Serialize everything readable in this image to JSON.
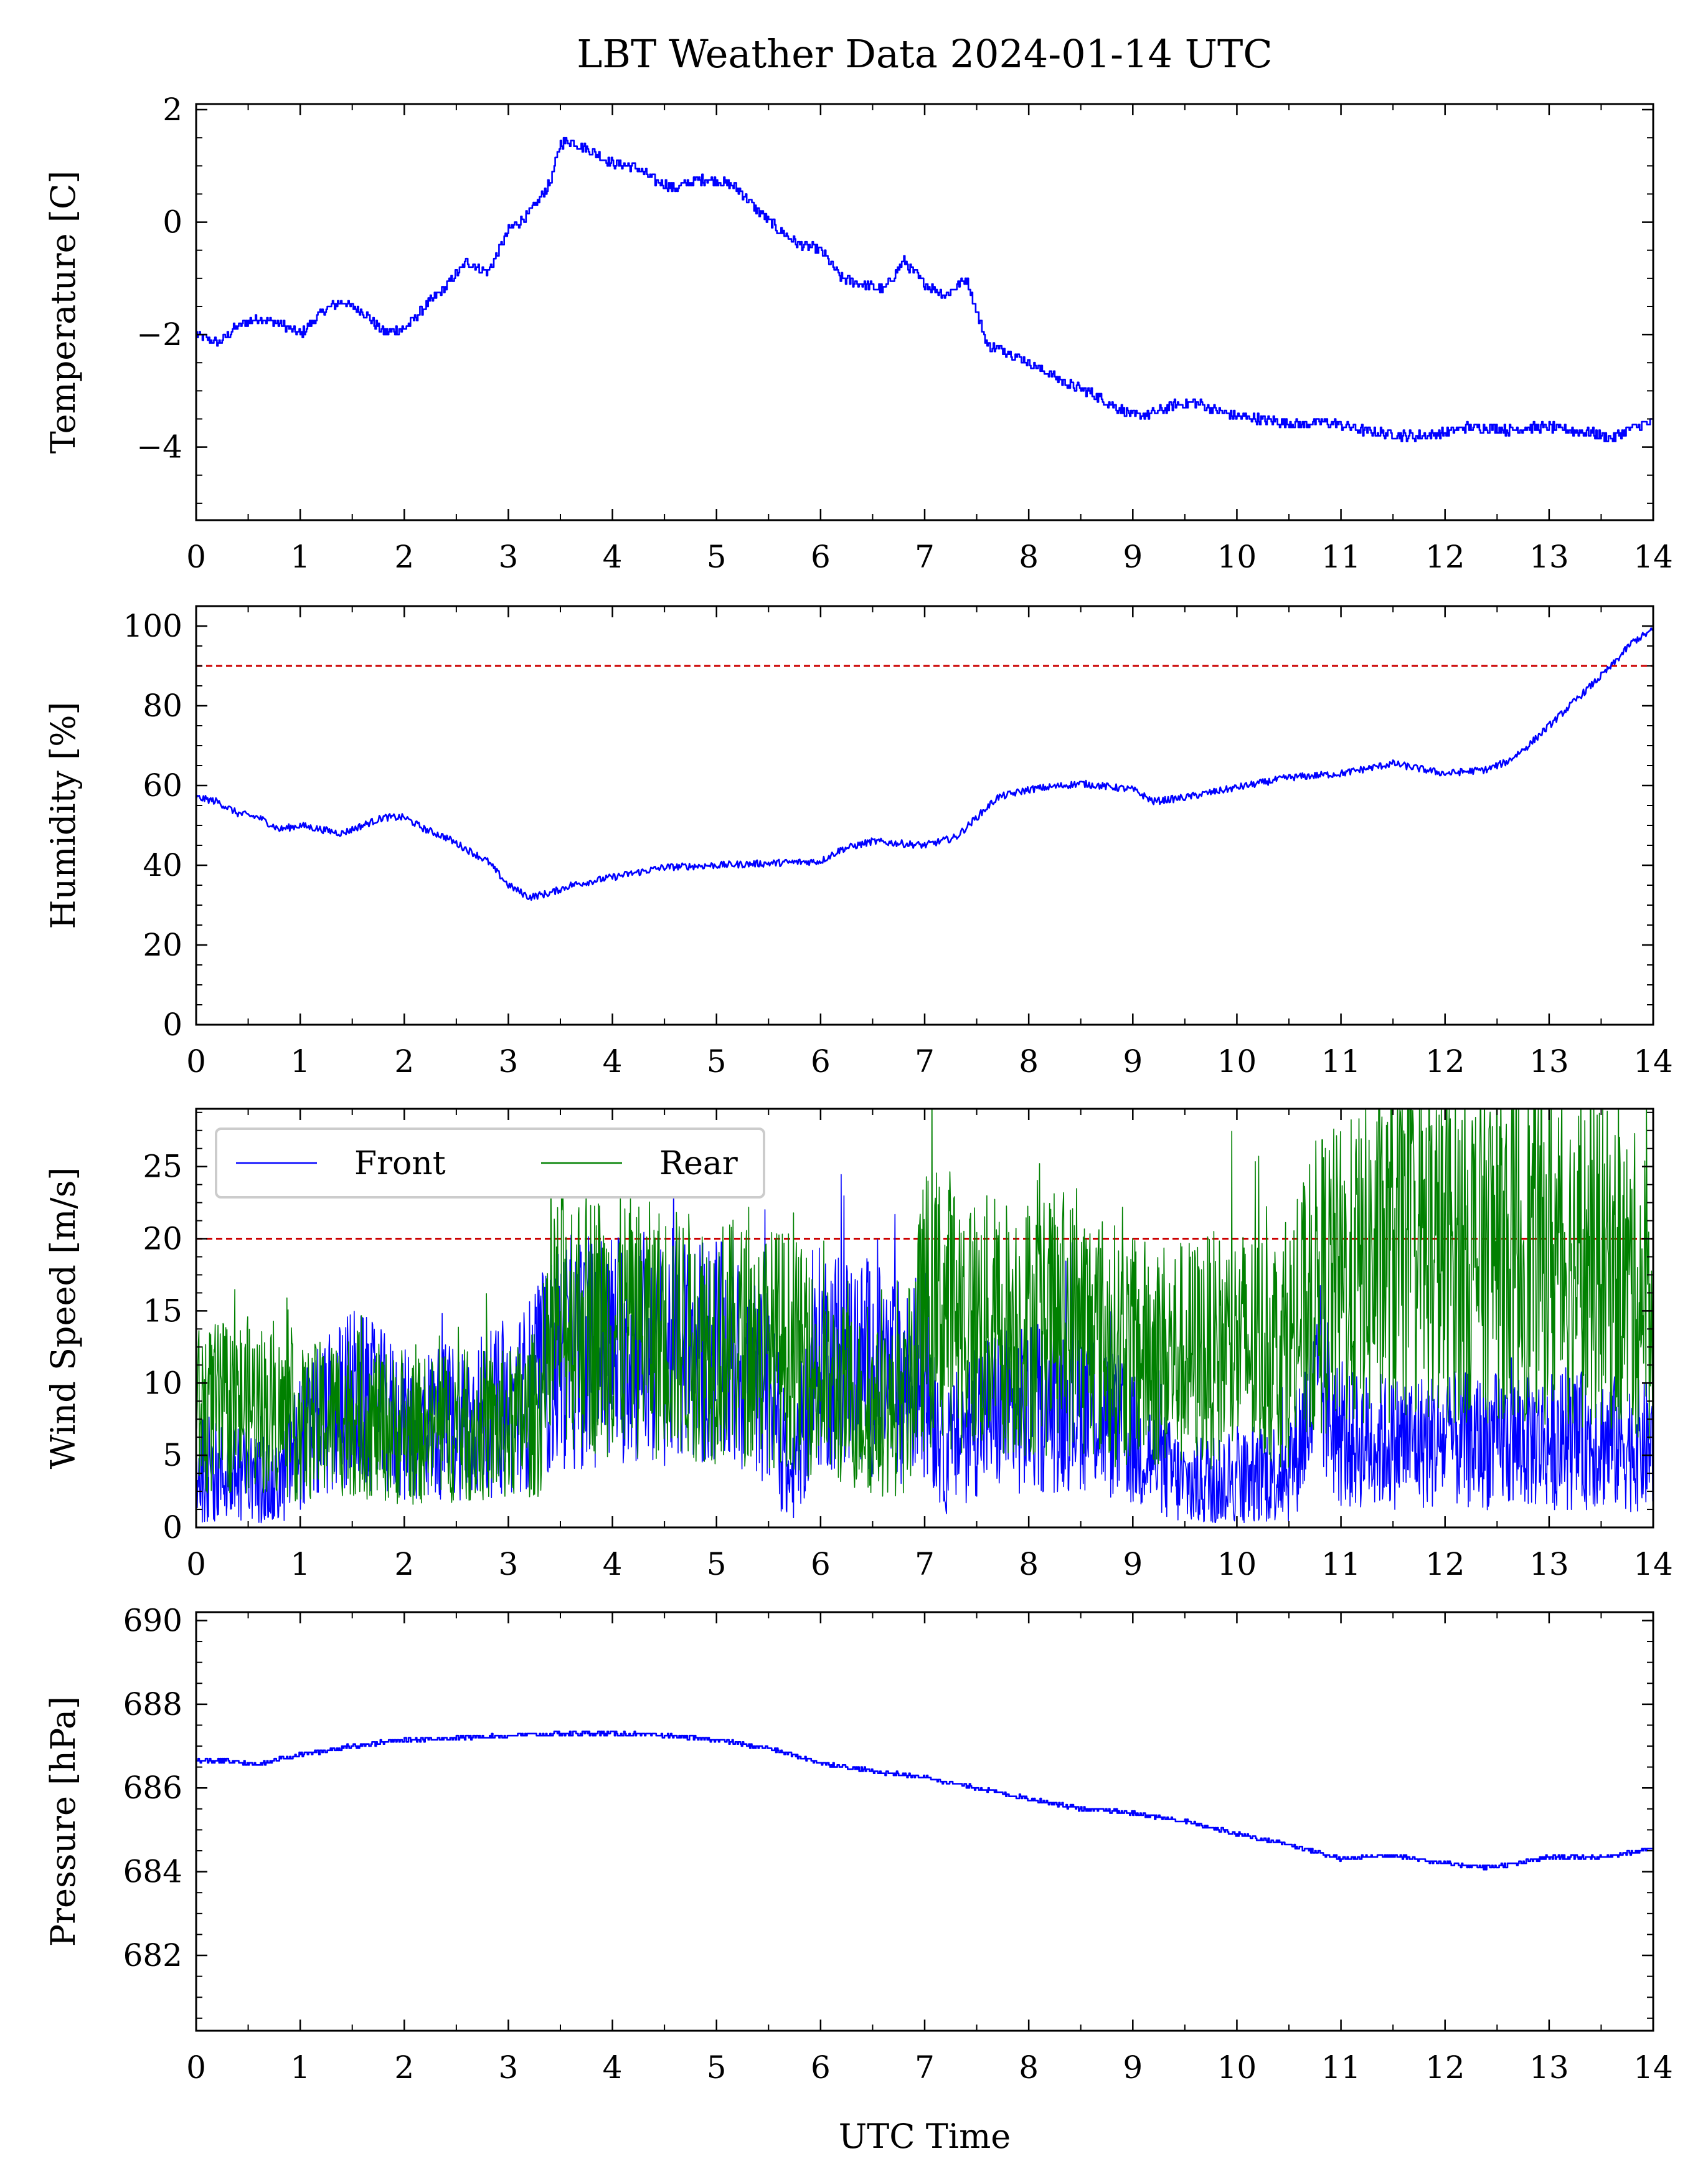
{
  "figure": {
    "title": "LBT Weather Data 2024-01-14 UTC",
    "xlabel": "UTC Time"
  },
  "colors": {
    "primary_series": "#0000ff",
    "secondary_series": "#008000",
    "threshold": "#cc0000",
    "axes": "#000000"
  },
  "chart_data": [
    {
      "type": "line",
      "id": "temperature",
      "ylabel": "Temperature [C]",
      "xlim": [
        0,
        14
      ],
      "ylim": [
        -5.3,
        2.1
      ],
      "xticks": [
        0,
        1,
        2,
        3,
        4,
        5,
        6,
        7,
        8,
        9,
        10,
        11,
        12,
        13,
        14
      ],
      "yticks": [
        -4,
        -2,
        0,
        2
      ],
      "ytick_labels": [
        "−4",
        "−2",
        "0",
        "2"
      ],
      "series": [
        {
          "color": "#0000ff",
          "x": [
            0,
            0.2,
            0.4,
            0.6,
            0.8,
            1.0,
            1.2,
            1.4,
            1.6,
            1.8,
            2.0,
            2.2,
            2.4,
            2.6,
            2.8,
            3.0,
            3.2,
            3.4,
            3.5,
            3.6,
            3.8,
            4.0,
            4.2,
            4.4,
            4.6,
            4.8,
            5.0,
            5.2,
            5.4,
            5.6,
            5.8,
            6.0,
            6.2,
            6.4,
            6.6,
            6.8,
            7.0,
            7.2,
            7.4,
            7.6,
            7.8,
            8.0,
            8.2,
            8.4,
            8.6,
            8.8,
            9.0,
            9.2,
            9.4,
            9.6,
            9.8,
            10.0,
            10.2,
            10.4,
            10.6,
            10.8,
            11.0,
            11.2,
            11.4,
            11.6,
            11.8,
            12.0,
            12.2,
            12.4,
            12.6,
            12.8,
            13.0,
            13.2,
            13.4,
            13.6,
            13.8,
            14.0
          ],
          "y": [
            -2.0,
            -2.15,
            -1.85,
            -1.7,
            -1.8,
            -2.0,
            -1.6,
            -1.4,
            -1.6,
            -1.95,
            -1.9,
            -1.5,
            -1.15,
            -0.7,
            -0.9,
            -0.15,
            0.15,
            0.7,
            1.4,
            1.45,
            1.25,
            1.05,
            1.0,
            0.75,
            0.6,
            0.75,
            0.75,
            0.6,
            0.2,
            -0.15,
            -0.4,
            -0.5,
            -1.0,
            -1.1,
            -1.2,
            -0.7,
            -1.1,
            -1.3,
            -1.0,
            -2.2,
            -2.3,
            -2.5,
            -2.7,
            -2.9,
            -3.05,
            -3.25,
            -3.45,
            -3.4,
            -3.25,
            -3.2,
            -3.35,
            -3.45,
            -3.5,
            -3.55,
            -3.6,
            -3.55,
            -3.6,
            -3.7,
            -3.75,
            -3.8,
            -3.8,
            -3.75,
            -3.65,
            -3.65,
            -3.7,
            -3.65,
            -3.65,
            -3.7,
            -3.75,
            -3.85,
            -3.65,
            -3.55
          ]
        }
      ]
    },
    {
      "type": "line",
      "id": "humidity",
      "ylabel": "Humidity [%]",
      "xlim": [
        0,
        14
      ],
      "ylim": [
        0,
        105
      ],
      "xticks": [
        0,
        1,
        2,
        3,
        4,
        5,
        6,
        7,
        8,
        9,
        10,
        11,
        12,
        13,
        14
      ],
      "yticks": [
        0,
        20,
        40,
        60,
        80,
        100
      ],
      "threshold": 90,
      "series": [
        {
          "color": "#0000ff",
          "x": [
            0,
            0.2,
            0.4,
            0.6,
            0.8,
            1.0,
            1.2,
            1.4,
            1.6,
            1.8,
            2.0,
            2.2,
            2.4,
            2.6,
            2.8,
            3.0,
            3.2,
            3.4,
            3.6,
            3.8,
            4.0,
            4.5,
            5.0,
            5.5,
            6.0,
            6.2,
            6.5,
            7.0,
            7.3,
            7.5,
            7.7,
            8.0,
            8.5,
            9.0,
            9.2,
            9.5,
            10.0,
            10.5,
            11.0,
            11.5,
            12.0,
            12.4,
            12.6,
            12.8,
            13.0,
            13.2,
            13.4,
            13.6,
            13.8,
            14.0
          ],
          "y": [
            57,
            56,
            53,
            52,
            49,
            50,
            49,
            48,
            50,
            52,
            52,
            49,
            47,
            44,
            41,
            35,
            32,
            33,
            35,
            36,
            37,
            39.5,
            40,
            40.5,
            41,
            44,
            46,
            45,
            47,
            52,
            57,
            59,
            60.5,
            59,
            56,
            57,
            59.5,
            62,
            63,
            65.5,
            63,
            64,
            66,
            70,
            75,
            80,
            85,
            90,
            96,
            99
          ]
        }
      ]
    },
    {
      "type": "line",
      "id": "wind_speed",
      "ylabel": "Wind Speed [m/s]",
      "xlim": [
        0,
        14
      ],
      "ylim": [
        0,
        29
      ],
      "xticks": [
        0,
        1,
        2,
        3,
        4,
        5,
        6,
        7,
        8,
        9,
        10,
        11,
        12,
        13,
        14
      ],
      "yticks": [
        0,
        5,
        10,
        15,
        20,
        25
      ],
      "threshold": 20,
      "legend_position": "upper-left",
      "series": [
        {
          "name": "Front",
          "color": "#0000ff",
          "x": [
            0,
            0.5,
            0.75,
            1.0,
            1.5,
            2.0,
            2.5,
            3.0,
            3.3,
            3.5,
            4.0,
            4.5,
            5.0,
            5.5,
            5.7,
            6.0,
            6.5,
            6.8,
            7.0,
            7.2,
            7.5,
            8.0,
            8.5,
            9.0,
            9.5,
            10.0,
            10.5,
            10.8,
            11.0,
            11.5,
            12.0,
            12.5,
            13.0,
            13.5,
            14.0
          ],
          "y": [
            4,
            3.5,
            2.5,
            6,
            9,
            7,
            7.5,
            8,
            10,
            12,
            12.5,
            12.5,
            12,
            10,
            3,
            12,
            11,
            10,
            11,
            5,
            8,
            8,
            9,
            6,
            3,
            3.5,
            4,
            10,
            6,
            6,
            6,
            6,
            6,
            6,
            5.5
          ]
        },
        {
          "name": "Rear",
          "color": "#008000",
          "x": [
            0,
            0.5,
            0.75,
            1.0,
            1.5,
            2.0,
            2.5,
            3.0,
            3.3,
            3.5,
            4.0,
            4.5,
            5.0,
            5.5,
            5.7,
            6.0,
            6.5,
            6.8,
            7.0,
            7.2,
            7.5,
            8.0,
            8.5,
            9.0,
            9.5,
            10.0,
            10.5,
            10.8,
            11.0,
            11.5,
            12.0,
            12.5,
            13.0,
            13.5,
            14.0
          ],
          "y": [
            8,
            8.5,
            8,
            7,
            8,
            6.5,
            7,
            7,
            8,
            15,
            14,
            13.5,
            13,
            12.5,
            12.5,
            10,
            8,
            8,
            15,
            15.5,
            14,
            14,
            14,
            12,
            12,
            12.5,
            12.5,
            17,
            17,
            19,
            19,
            19.5,
            19,
            18,
            16
          ]
        }
      ]
    },
    {
      "type": "line",
      "id": "pressure",
      "ylabel": "Pressure [hPa]",
      "xlim": [
        0,
        14
      ],
      "ylim": [
        680.2,
        690.2
      ],
      "xticks": [
        0,
        1,
        2,
        3,
        4,
        5,
        6,
        7,
        8,
        9,
        10,
        11,
        12,
        13,
        14
      ],
      "yticks": [
        682,
        684,
        686,
        688,
        690
      ],
      "series": [
        {
          "color": "#0000ff",
          "x": [
            0,
            0.3,
            0.6,
            0.8,
            1.0,
            1.5,
            2.0,
            2.5,
            3.0,
            3.5,
            4.0,
            4.5,
            5.0,
            5.5,
            6.0,
            6.5,
            7.0,
            7.5,
            8.0,
            8.5,
            9.0,
            9.5,
            10.0,
            10.5,
            11.0,
            11.5,
            12.0,
            12.4,
            12.7,
            13.0,
            13.5,
            14.0
          ],
          "y": [
            686.65,
            686.65,
            686.55,
            686.7,
            686.8,
            687.0,
            687.15,
            687.2,
            687.25,
            687.3,
            687.3,
            687.25,
            687.15,
            686.95,
            686.6,
            686.4,
            686.25,
            686.0,
            685.75,
            685.5,
            685.4,
            685.2,
            684.9,
            684.65,
            684.3,
            684.4,
            684.2,
            684.1,
            684.2,
            684.35,
            684.35,
            684.55
          ]
        }
      ]
    }
  ]
}
